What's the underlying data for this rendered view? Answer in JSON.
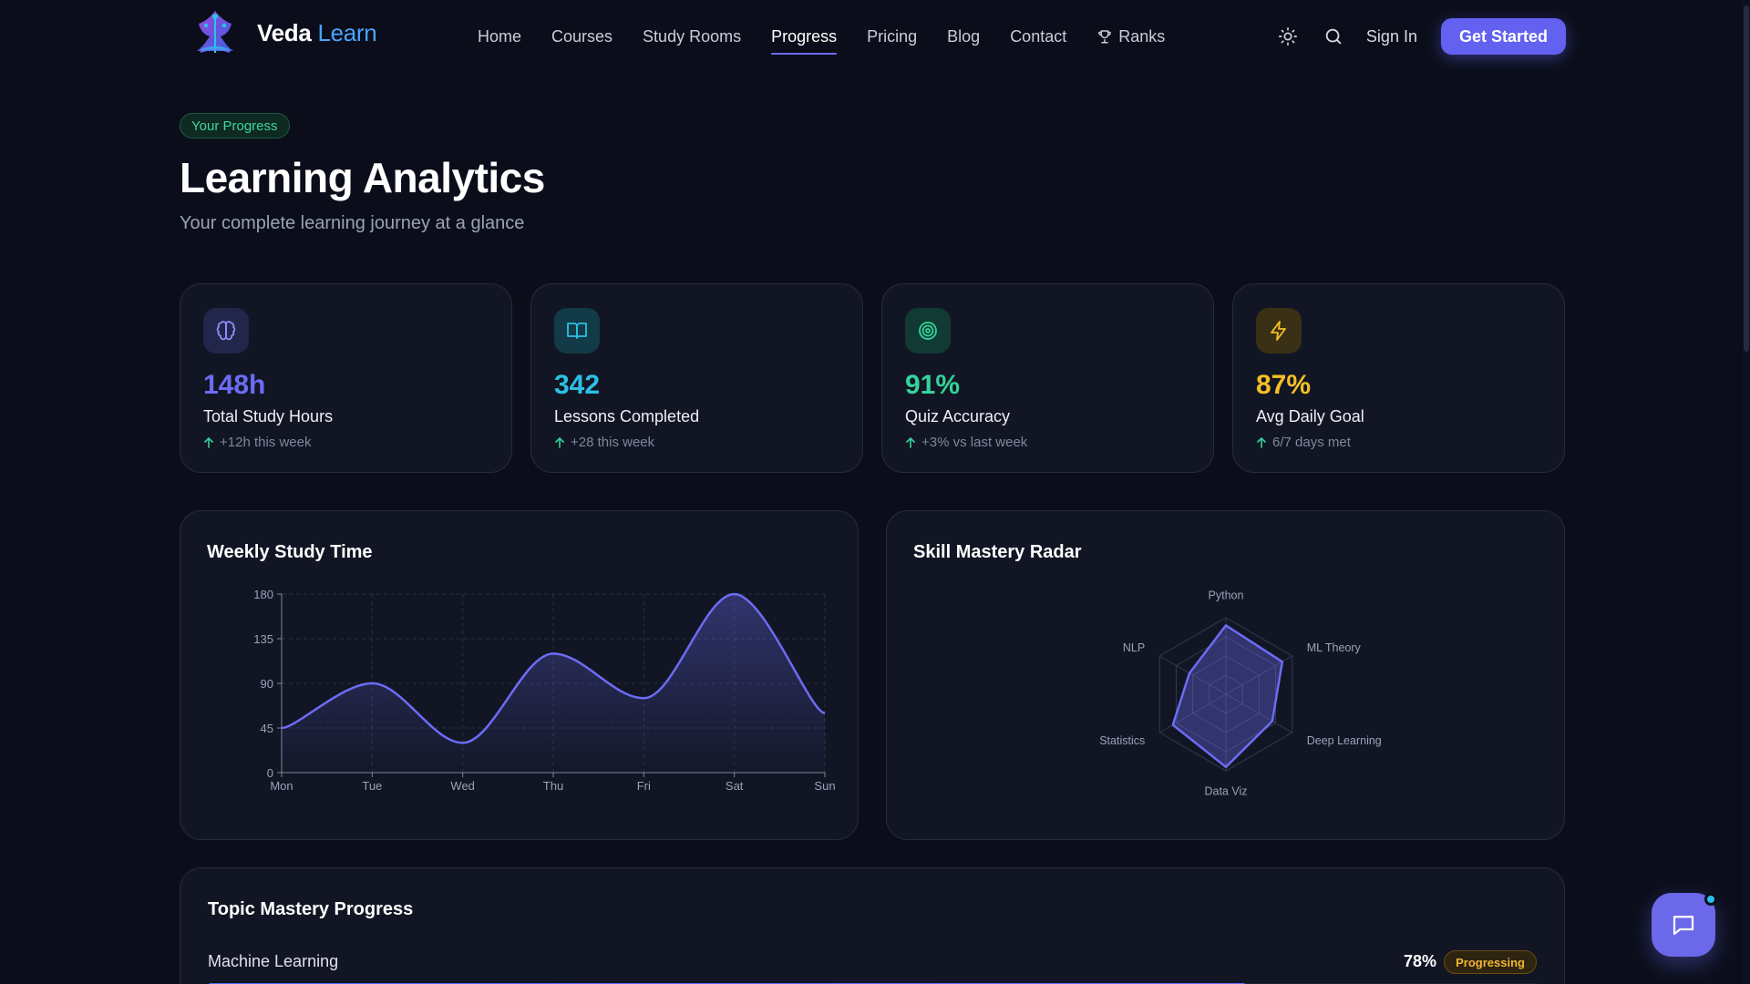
{
  "brand": {
    "name": "Veda",
    "accent": "Learn"
  },
  "nav": {
    "items": [
      {
        "label": "Home",
        "active": false
      },
      {
        "label": "Courses",
        "active": false
      },
      {
        "label": "Study Rooms",
        "active": false
      },
      {
        "label": "Progress",
        "active": true
      },
      {
        "label": "Pricing",
        "active": false
      },
      {
        "label": "Blog",
        "active": false
      },
      {
        "label": "Contact",
        "active": false
      },
      {
        "label": "Ranks",
        "active": false,
        "icon": "trophy-icon"
      }
    ],
    "sign_in": "Sign In",
    "cta": "Get Started"
  },
  "header": {
    "tag": "Your Progress",
    "title": "Learning Analytics",
    "subtitle": "Your complete learning journey at a glance"
  },
  "stats": [
    {
      "icon": "brain-icon",
      "value": "148h",
      "label": "Total Study Hours",
      "delta": "+12h this week",
      "color": "#6c6cf5"
    },
    {
      "icon": "book-open-icon",
      "value": "342",
      "label": "Lessons Completed",
      "delta": "+28 this week",
      "color": "#2bc0e4"
    },
    {
      "icon": "target-icon",
      "value": "91%",
      "label": "Quiz Accuracy",
      "delta": "+3% vs last week",
      "color": "#34d399"
    },
    {
      "icon": "lightning-icon",
      "value": "87%",
      "label": "Avg Daily Goal",
      "delta": "6/7 days met",
      "color": "#f5c025"
    }
  ],
  "weekly": {
    "title": "Weekly Study Time"
  },
  "radar": {
    "title": "Skill Mastery Radar"
  },
  "topics": {
    "title": "Topic Mastery Progress",
    "items": [
      {
        "name": "Machine Learning",
        "percent": "78%",
        "fraction": 0.78,
        "status": "Progressing"
      }
    ]
  },
  "chart_data": [
    {
      "type": "area",
      "categories": [
        "Mon",
        "Tue",
        "Wed",
        "Thu",
        "Fri",
        "Sat",
        "Sun"
      ],
      "series": [
        {
          "values": [
            45,
            90,
            30,
            120,
            75,
            180,
            60
          ]
        }
      ],
      "title": "Weekly Study Time",
      "yticks": [
        0,
        45,
        90,
        135,
        180
      ],
      "ylim": [
        0,
        180
      ],
      "grid": true,
      "color": "#6c6cf5"
    },
    {
      "type": "radar",
      "axes": [
        "Python",
        "ML Theory",
        "Deep Learning",
        "Data Viz",
        "Statistics",
        "NLP"
      ],
      "values": [
        90,
        85,
        70,
        95,
        80,
        55
      ],
      "max": 100,
      "rings": 4,
      "title": "Skill Mastery Radar",
      "color": "#6c6cf5"
    }
  ]
}
